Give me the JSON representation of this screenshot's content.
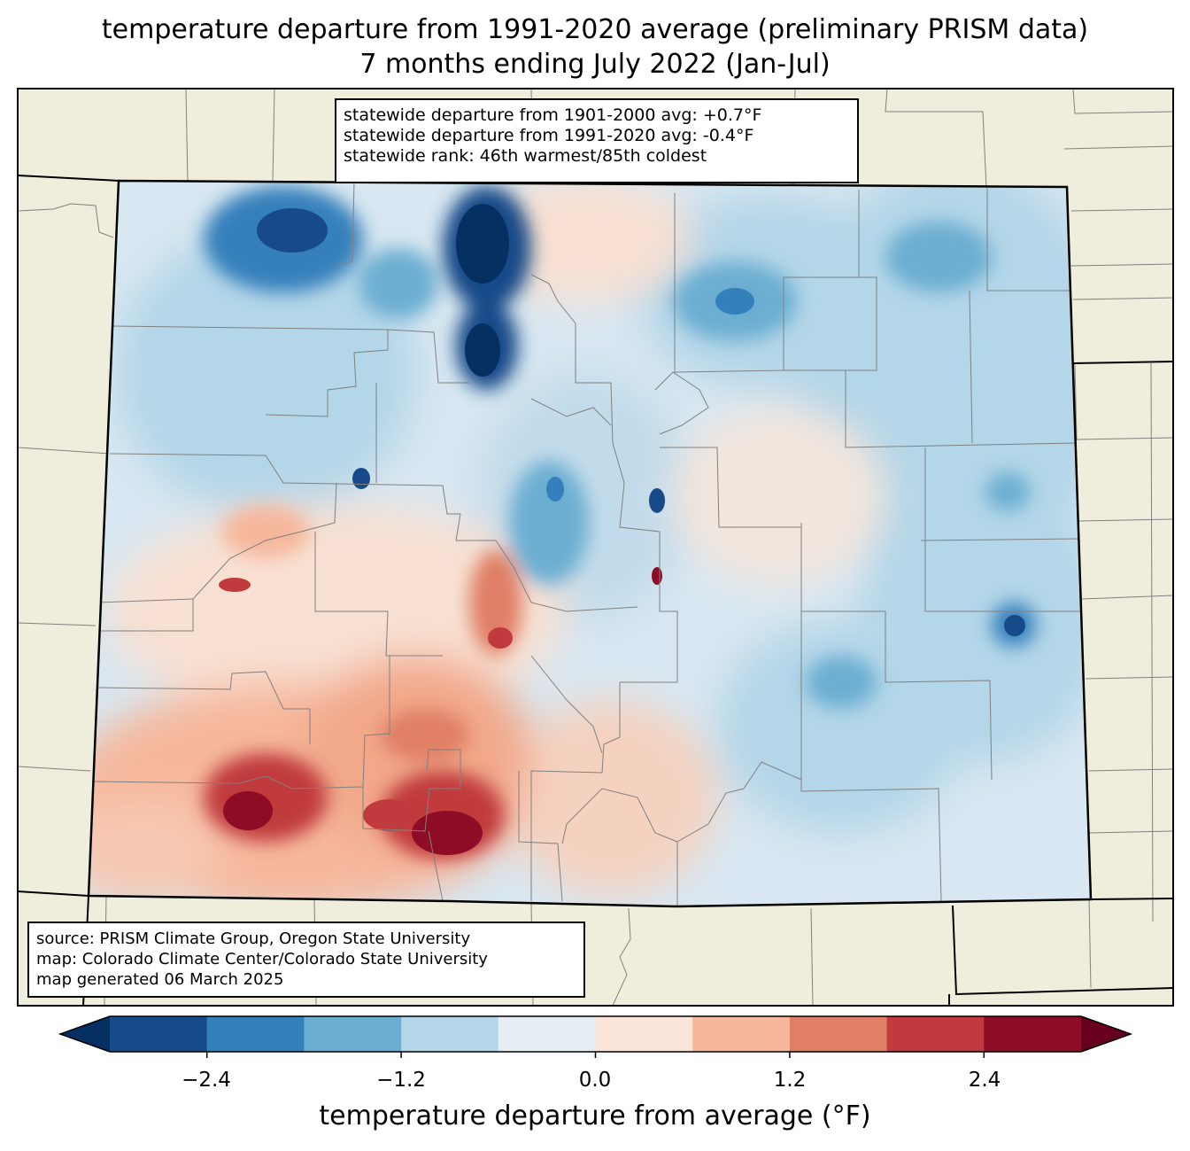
{
  "title": {
    "line1": "temperature departure from 1991-2020 average (preliminary PRISM data)",
    "line2": "7 months ending July 2022 (Jan-Jul)"
  },
  "stats": {
    "line1": "statewide departure from 1901-2000 avg: +0.7°F",
    "line2": "statewide departure from 1991-2020 avg: -0.4°F",
    "line3": "statewide rank: 46th warmest/85th coldest"
  },
  "source": {
    "line1": "source: PRISM Climate Group, Oregon State University",
    "line2": "map: Colorado Climate Center/Colorado State University",
    "line3": "map generated 06 March 2025"
  },
  "colorbar": {
    "label": "temperature departure from average (°F)",
    "ticks": [
      "−2.4",
      "−1.2",
      "0.0",
      "1.2",
      "2.4"
    ],
    "colors": [
      "#053061",
      "#174a88",
      "#3480bb",
      "#6caed2",
      "#b3d6e8",
      "#e6eef4",
      "#fbe5d8",
      "#f6b89c",
      "#e07f65",
      "#c13a3d",
      "#8e0c25",
      "#67001f"
    ]
  },
  "colors": {
    "land": "#efeedc",
    "state_border": "#000000",
    "county_border": "#808080"
  }
}
